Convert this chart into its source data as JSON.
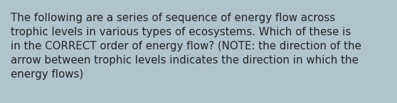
{
  "background_color": "#b0c4ce",
  "text_color": "#222222",
  "text": "The following are a series of sequence of energy flow across\ntrophic levels in various types of ecosystems. Which of these is\nin the CORRECT order of energy flow? (NOTE: the direction of the\narrow between trophic levels indicates the direction in which the\nenergy flows)",
  "font_size": 10.8,
  "fig_width": 5.58,
  "fig_height": 1.46,
  "dpi": 100
}
